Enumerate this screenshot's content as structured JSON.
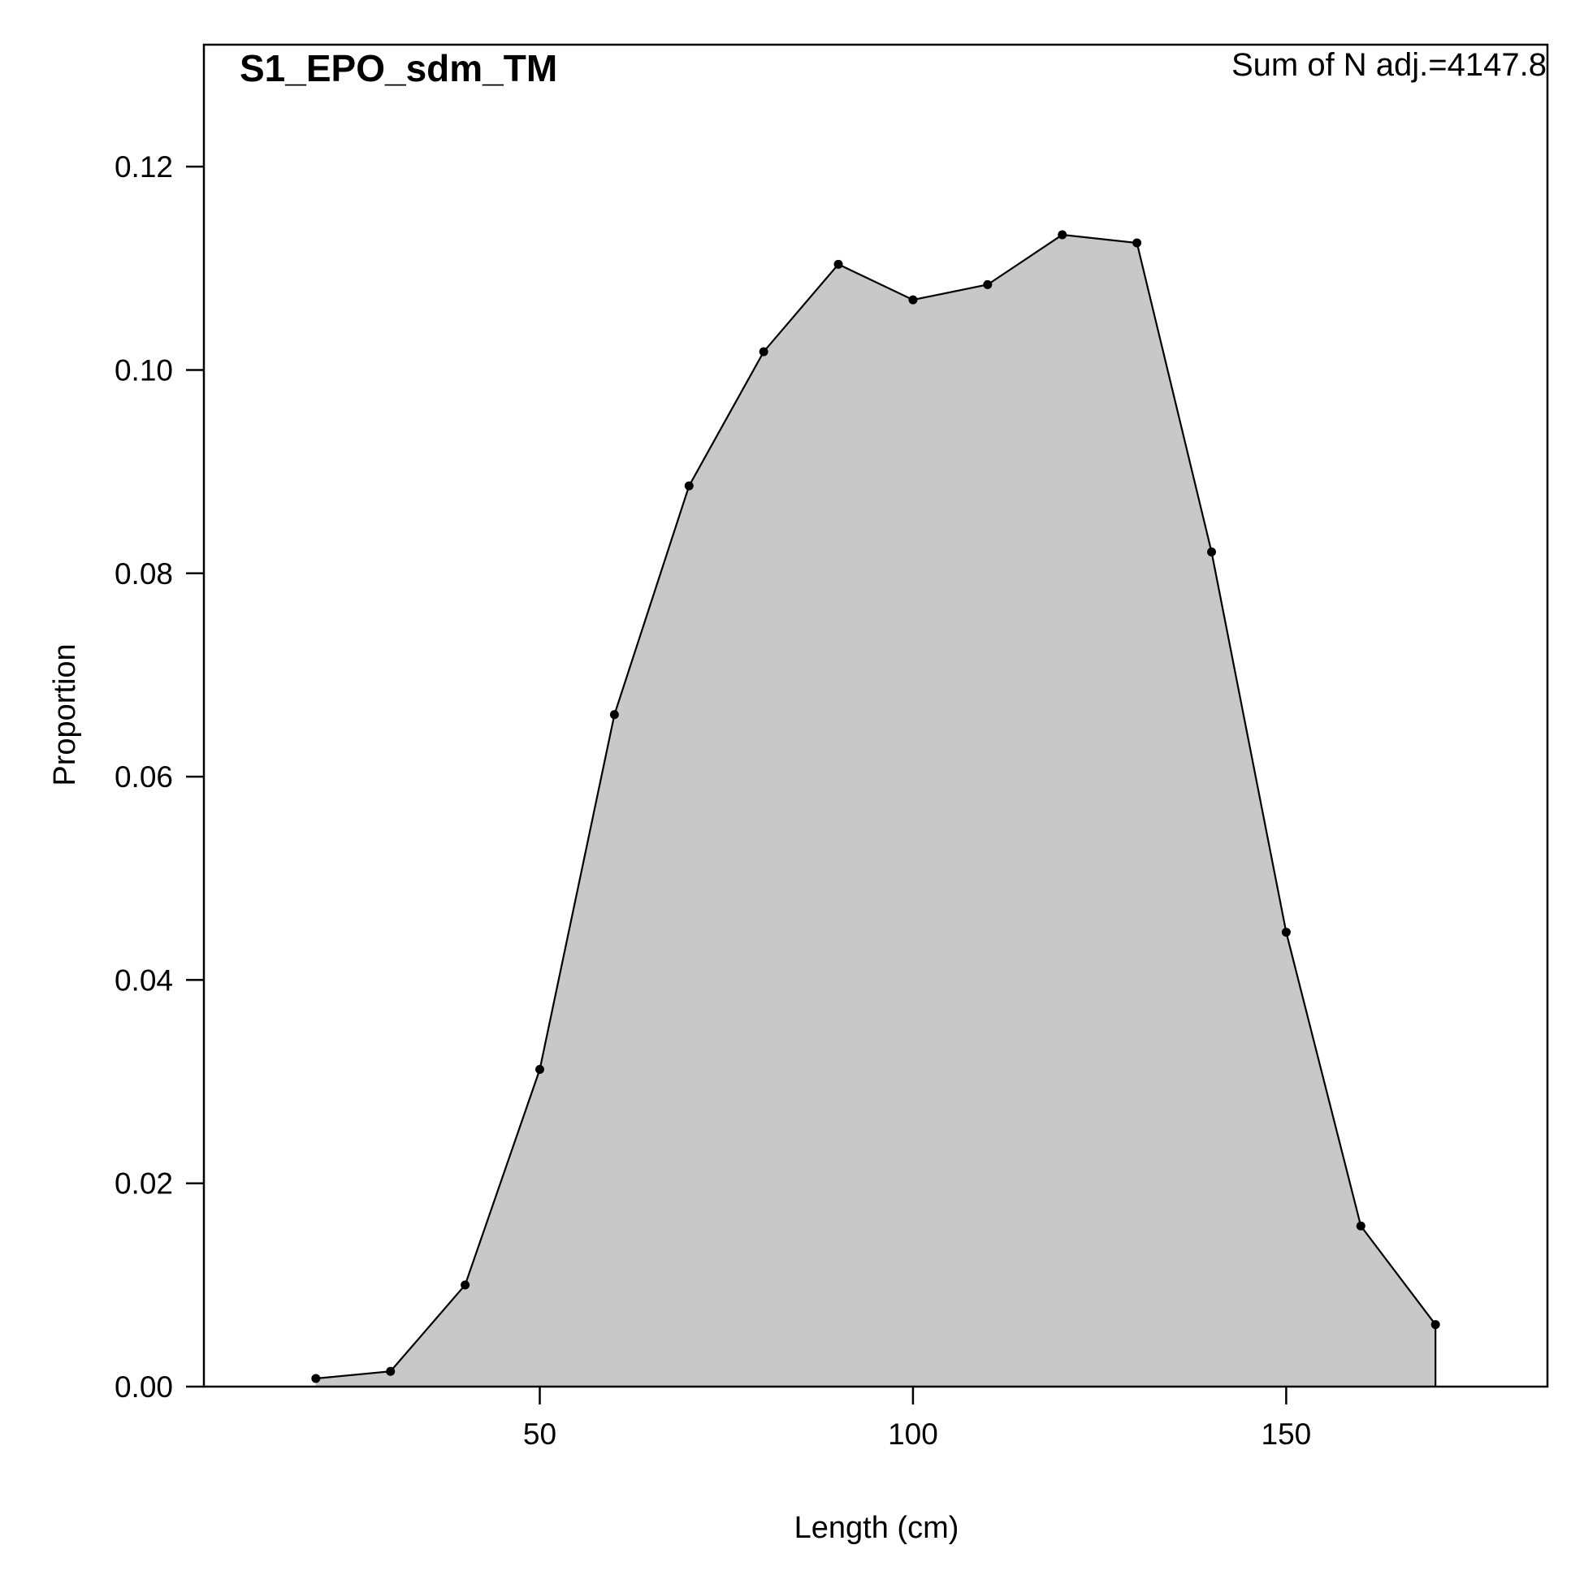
{
  "chart_data": {
    "type": "area",
    "title": "S1_EPO_sdm_TM",
    "annotation": "Sum of N adj.=4147.8",
    "x_label": "Length (cm)",
    "y_label": "Proportion",
    "x": [
      20,
      30,
      40,
      50,
      60,
      70,
      80,
      90,
      100,
      110,
      120,
      130,
      140,
      150,
      160,
      170
    ],
    "values": [
      0.0008,
      0.0015,
      0.01,
      0.0312,
      0.0661,
      0.0886,
      0.1018,
      0.1104,
      0.1069,
      0.1084,
      0.1133,
      0.1125,
      0.0821,
      0.0447,
      0.0158,
      0.0061
    ],
    "fill_color": "#c8c8c8",
    "line_color": "#000000",
    "xlim": [
      5,
      185
    ],
    "ylim": [
      0,
      0.132
    ],
    "xticks": [
      50,
      100,
      150
    ],
    "yticks": [
      {
        "value": 0,
        "label": "0.00"
      },
      {
        "value": 0.02,
        "label": "0.02"
      },
      {
        "value": 0.04,
        "label": "0.04"
      },
      {
        "value": 0.06,
        "label": "0.06"
      },
      {
        "value": 0.08,
        "label": "0.08"
      },
      {
        "value": 0.1,
        "label": "0.10"
      },
      {
        "value": 0.12,
        "label": "0.12"
      }
    ]
  }
}
